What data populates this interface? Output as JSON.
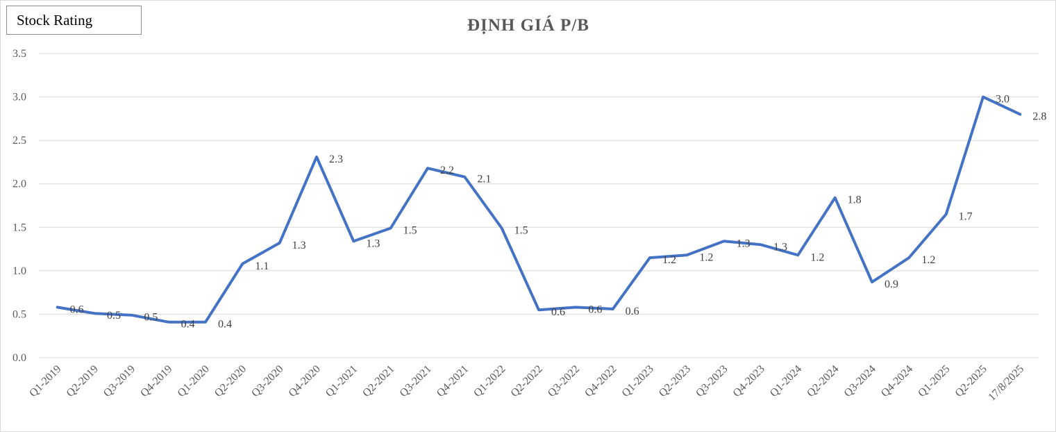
{
  "badge": {
    "label": "Stock Rating"
  },
  "colors": {
    "line": "#4472C4",
    "grid": "#d9d9d9",
    "text": "#595959"
  },
  "chart_data": {
    "type": "line",
    "title": "ĐỊNH GIÁ P/B",
    "xlabel": "",
    "ylabel": "",
    "ylim": [
      0,
      3.5
    ],
    "yticks": [
      "0.0",
      "0.5",
      "1.0",
      "1.5",
      "2.0",
      "2.5",
      "3.0",
      "3.5"
    ],
    "grid": true,
    "categories": [
      "Q1-2019",
      "Q2-2019",
      "Q3-2019",
      "Q4-2019",
      "Q1-2020",
      "Q2-2020",
      "Q3-2020",
      "Q4-2020",
      "Q1-2021",
      "Q2-2021",
      "Q3-2021",
      "Q4-2021",
      "Q1-2022",
      "Q2-2022",
      "Q3-2022",
      "Q4-2022",
      "Q1-2023",
      "Q2-2023",
      "Q3-2023",
      "Q4-2023",
      "Q1-2024",
      "Q2-2024",
      "Q3-2024",
      "Q4-2024",
      "Q1-2025",
      "Q2-2025",
      "17/8/2025"
    ],
    "series": [
      {
        "name": "P/B",
        "values": [
          0.58,
          0.51,
          0.49,
          0.41,
          0.41,
          1.08,
          1.32,
          2.31,
          1.34,
          1.49,
          2.18,
          2.08,
          1.49,
          0.55,
          0.58,
          0.56,
          1.15,
          1.18,
          1.34,
          1.3,
          1.18,
          1.84,
          0.87,
          1.15,
          1.65,
          3.0,
          2.8
        ],
        "labels": [
          "0.6",
          "0.5",
          "0.5",
          "0.4",
          "0.4",
          "1.1",
          "1.3",
          "2.3",
          "1.3",
          "1.5",
          "2.2",
          "2.1",
          "1.5",
          "0.6",
          "0.6",
          "0.6",
          "1.2",
          "1.2",
          "1.3",
          "1.3",
          "1.2",
          "1.8",
          "0.9",
          "1.2",
          "1.7",
          "3.0",
          "2.8"
        ]
      }
    ]
  }
}
